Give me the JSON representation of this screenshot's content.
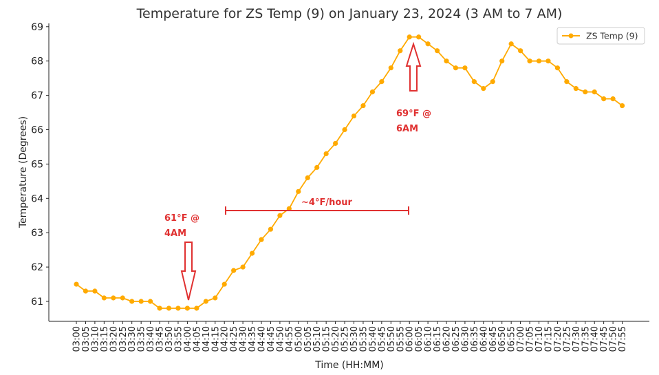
{
  "chart_data": {
    "type": "line",
    "title": "Temperature for ZS Temp (9) on January 23, 2024 (3 AM to 7 AM)",
    "xlabel": "Time (HH:MM)",
    "ylabel": "Temperature (Degrees)",
    "ylim": [
      60.4,
      69.1
    ],
    "yticks": [
      61,
      62,
      63,
      64,
      65,
      66,
      67,
      68,
      69
    ],
    "grid": false,
    "legend_position": "top-right",
    "series": [
      {
        "name": "ZS Temp (9)",
        "color": "#ffaa00",
        "x": [
          "03:00",
          "03:05",
          "03:10",
          "03:15",
          "03:20",
          "03:25",
          "03:30",
          "03:35",
          "03:40",
          "03:45",
          "03:50",
          "03:55",
          "04:00",
          "04:05",
          "04:10",
          "04:15",
          "04:20",
          "04:25",
          "04:30",
          "04:35",
          "04:40",
          "04:45",
          "04:50",
          "04:55",
          "05:00",
          "05:05",
          "05:10",
          "05:15",
          "05:20",
          "05:25",
          "05:30",
          "05:35",
          "05:40",
          "05:45",
          "05:50",
          "05:55",
          "06:00",
          "06:05",
          "06:10",
          "06:15",
          "06:20",
          "06:25",
          "06:30",
          "06:35",
          "06:40",
          "06:45",
          "06:50",
          "06:55",
          "07:00",
          "07:05",
          "07:10",
          "07:15",
          "07:20",
          "07:25",
          "07:30",
          "07:35",
          "07:40",
          "07:45",
          "07:50",
          "07:55"
        ],
        "values": [
          61.5,
          61.3,
          61.3,
          61.1,
          61.1,
          61.1,
          61.0,
          61.0,
          61.0,
          60.8,
          60.8,
          60.8,
          60.8,
          60.8,
          61.0,
          61.1,
          61.5,
          61.9,
          62.0,
          62.4,
          62.8,
          63.1,
          63.5,
          63.7,
          64.2,
          64.6,
          64.9,
          65.3,
          65.6,
          66.0,
          66.4,
          66.7,
          67.1,
          67.4,
          67.8,
          68.3,
          68.7,
          68.7,
          68.5,
          68.3,
          68.0,
          67.8,
          67.8,
          67.4,
          67.2,
          67.4,
          68.0,
          68.5,
          68.3,
          68.0,
          68.0,
          68.0,
          67.8,
          67.4,
          67.2,
          67.1,
          67.1,
          66.9,
          66.9,
          66.7
        ]
      }
    ],
    "annotations": [
      {
        "text_line1": "61°F @",
        "text_line2": "4AM",
        "arrow_at_x": "04:00",
        "arrow_direction": "down",
        "color": "#e03131"
      },
      {
        "text_line1": "69°F @",
        "text_line2": "6AM",
        "arrow_at_x": "06:00",
        "arrow_direction": "up",
        "color": "#e03131"
      },
      {
        "text": "~4°F/hour",
        "span_from": "04:20",
        "span_to": "06:00",
        "at_y": 63.6,
        "color": "#e03131"
      }
    ]
  }
}
